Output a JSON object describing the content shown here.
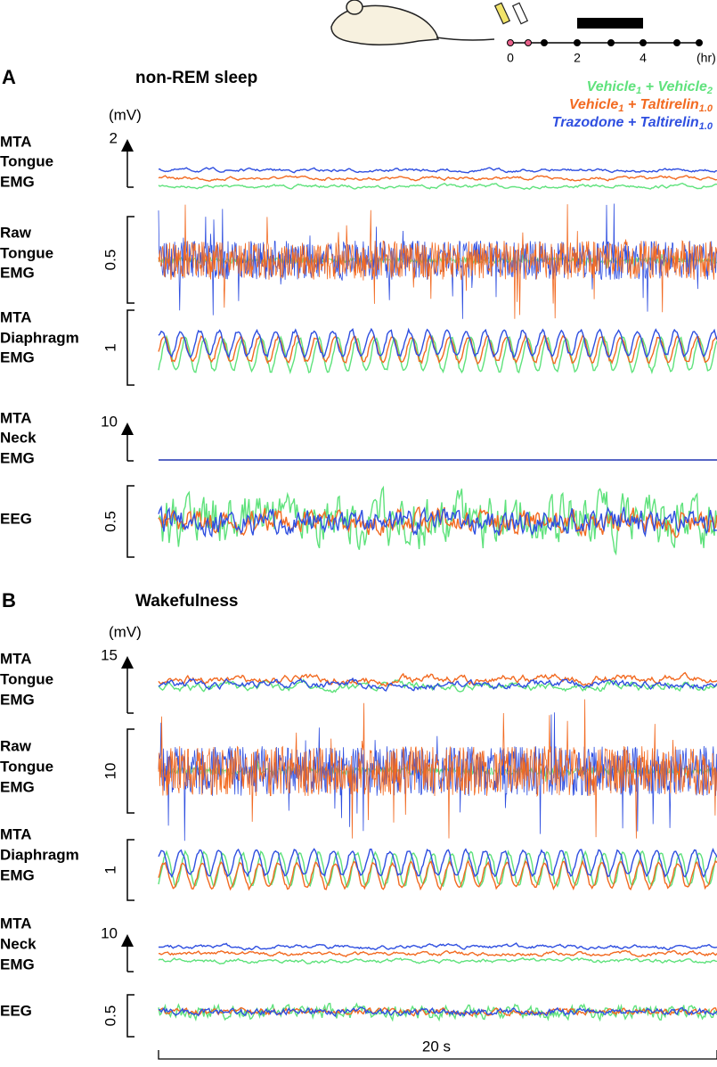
{
  "timeline": {
    "ticks": [
      "0",
      "2",
      "4"
    ],
    "unit": "(hr)"
  },
  "legend": [
    {
      "text1": "Vehicle",
      "sub1": "1",
      "text2": " + Vehicle",
      "sub2": "2",
      "color": "#5fe27c"
    },
    {
      "text1": "Vehicle",
      "sub1": "1",
      "text2": " + Taltirelin",
      "sub2": "1.0",
      "color": "#f26a21"
    },
    {
      "text1": "Trazodone + Taltirelin",
      "sub1": "1.0",
      "color": "#2f4fe0"
    }
  ],
  "panels": [
    {
      "letter": "A",
      "title": "non-REM sleep",
      "unit": "(mV)",
      "rows": [
        {
          "label": [
            "MTA",
            "Tongue",
            "EMG"
          ],
          "scale": "2"
        },
        {
          "label": [
            "Raw",
            "Tongue",
            "EMG"
          ],
          "scale": "0.5"
        },
        {
          "label": [
            "MTA",
            "Diaphragm",
            "EMG"
          ],
          "scale": "1"
        },
        {
          "label": [
            "MTA",
            "Neck",
            "EMG"
          ],
          "scale": "10"
        },
        {
          "label": [
            "EEG"
          ],
          "scale": "0.5"
        }
      ]
    },
    {
      "letter": "B",
      "title": "Wakefulness",
      "unit": "(mV)",
      "rows": [
        {
          "label": [
            "MTA",
            "Tongue",
            "EMG"
          ],
          "scale": "15"
        },
        {
          "label": [
            "Raw",
            "Tongue",
            "EMG"
          ],
          "scale": "10"
        },
        {
          "label": [
            "MTA",
            "Diaphragm",
            "EMG"
          ],
          "scale": "1"
        },
        {
          "label": [
            "MTA",
            "Neck",
            "EMG"
          ],
          "scale": "10"
        },
        {
          "label": [
            "EEG"
          ],
          "scale": "0.5"
        }
      ]
    }
  ],
  "time_scale": "20 s"
}
